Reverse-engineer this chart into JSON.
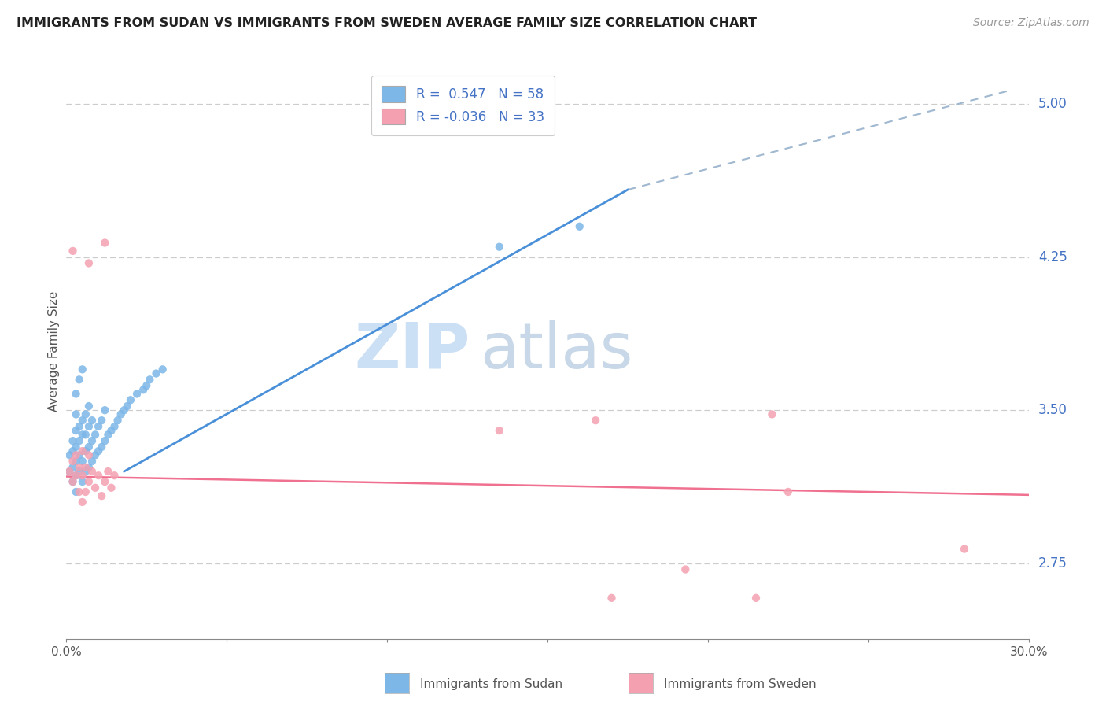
{
  "title": "IMMIGRANTS FROM SUDAN VS IMMIGRANTS FROM SWEDEN AVERAGE FAMILY SIZE CORRELATION CHART",
  "source": "Source: ZipAtlas.com",
  "ylabel": "Average Family Size",
  "right_yticks": [
    2.75,
    3.5,
    4.25,
    5.0
  ],
  "xlim": [
    0.0,
    0.3
  ],
  "ylim": [
    2.38,
    5.2
  ],
  "sudan_color": "#7db7e8",
  "sweden_color": "#f4a0b0",
  "sudan_line_color": "#4a90d9",
  "sweden_line_color": "#f07090",
  "watermark_zip_color": "#cce0f5",
  "watermark_atlas_color": "#c8d8e8",
  "sudan_line_x": [
    0.018,
    0.175
  ],
  "sudan_line_y": [
    3.2,
    4.58
  ],
  "dash_line_x": [
    0.175,
    0.295
  ],
  "dash_line_y": [
    4.58,
    5.07
  ],
  "sweden_line_x": [
    0.0,
    0.3
  ],
  "sweden_line_y": [
    3.175,
    3.085
  ],
  "sudan_points": [
    [
      0.001,
      3.2
    ],
    [
      0.001,
      3.28
    ],
    [
      0.002,
      3.15
    ],
    [
      0.002,
      3.22
    ],
    [
      0.002,
      3.3
    ],
    [
      0.002,
      3.35
    ],
    [
      0.003,
      3.1
    ],
    [
      0.003,
      3.18
    ],
    [
      0.003,
      3.25
    ],
    [
      0.003,
      3.32
    ],
    [
      0.003,
      3.4
    ],
    [
      0.003,
      3.48
    ],
    [
      0.004,
      3.2
    ],
    [
      0.004,
      3.28
    ],
    [
      0.004,
      3.35
    ],
    [
      0.004,
      3.42
    ],
    [
      0.005,
      3.15
    ],
    [
      0.005,
      3.25
    ],
    [
      0.005,
      3.38
    ],
    [
      0.005,
      3.45
    ],
    [
      0.006,
      3.2
    ],
    [
      0.006,
      3.3
    ],
    [
      0.006,
      3.38
    ],
    [
      0.006,
      3.48
    ],
    [
      0.007,
      3.22
    ],
    [
      0.007,
      3.32
    ],
    [
      0.007,
      3.42
    ],
    [
      0.007,
      3.52
    ],
    [
      0.008,
      3.25
    ],
    [
      0.008,
      3.35
    ],
    [
      0.008,
      3.45
    ],
    [
      0.009,
      3.28
    ],
    [
      0.009,
      3.38
    ],
    [
      0.01,
      3.3
    ],
    [
      0.01,
      3.42
    ],
    [
      0.011,
      3.32
    ],
    [
      0.011,
      3.45
    ],
    [
      0.012,
      3.35
    ],
    [
      0.012,
      3.5
    ],
    [
      0.013,
      3.38
    ],
    [
      0.014,
      3.4
    ],
    [
      0.015,
      3.42
    ],
    [
      0.016,
      3.45
    ],
    [
      0.017,
      3.48
    ],
    [
      0.018,
      3.5
    ],
    [
      0.019,
      3.52
    ],
    [
      0.02,
      3.55
    ],
    [
      0.022,
      3.58
    ],
    [
      0.024,
      3.6
    ],
    [
      0.025,
      3.62
    ],
    [
      0.026,
      3.65
    ],
    [
      0.028,
      3.68
    ],
    [
      0.03,
      3.7
    ],
    [
      0.135,
      4.3
    ],
    [
      0.16,
      4.4
    ],
    [
      0.003,
      3.58
    ],
    [
      0.004,
      3.65
    ],
    [
      0.005,
      3.7
    ]
  ],
  "sweden_points": [
    [
      0.001,
      3.2
    ],
    [
      0.002,
      3.15
    ],
    [
      0.002,
      3.25
    ],
    [
      0.003,
      3.18
    ],
    [
      0.003,
      3.28
    ],
    [
      0.004,
      3.1
    ],
    [
      0.004,
      3.22
    ],
    [
      0.005,
      3.05
    ],
    [
      0.005,
      3.18
    ],
    [
      0.005,
      3.3
    ],
    [
      0.006,
      3.1
    ],
    [
      0.006,
      3.22
    ],
    [
      0.007,
      3.15
    ],
    [
      0.007,
      3.28
    ],
    [
      0.008,
      3.2
    ],
    [
      0.009,
      3.12
    ],
    [
      0.01,
      3.18
    ],
    [
      0.011,
      3.08
    ],
    [
      0.012,
      3.15
    ],
    [
      0.013,
      3.2
    ],
    [
      0.014,
      3.12
    ],
    [
      0.015,
      3.18
    ],
    [
      0.002,
      4.28
    ],
    [
      0.007,
      4.22
    ],
    [
      0.012,
      4.32
    ],
    [
      0.165,
      3.45
    ],
    [
      0.22,
      3.48
    ],
    [
      0.225,
      3.1
    ],
    [
      0.17,
      2.58
    ],
    [
      0.28,
      2.82
    ],
    [
      0.193,
      2.72
    ],
    [
      0.135,
      3.4
    ],
    [
      0.215,
      2.58
    ]
  ]
}
